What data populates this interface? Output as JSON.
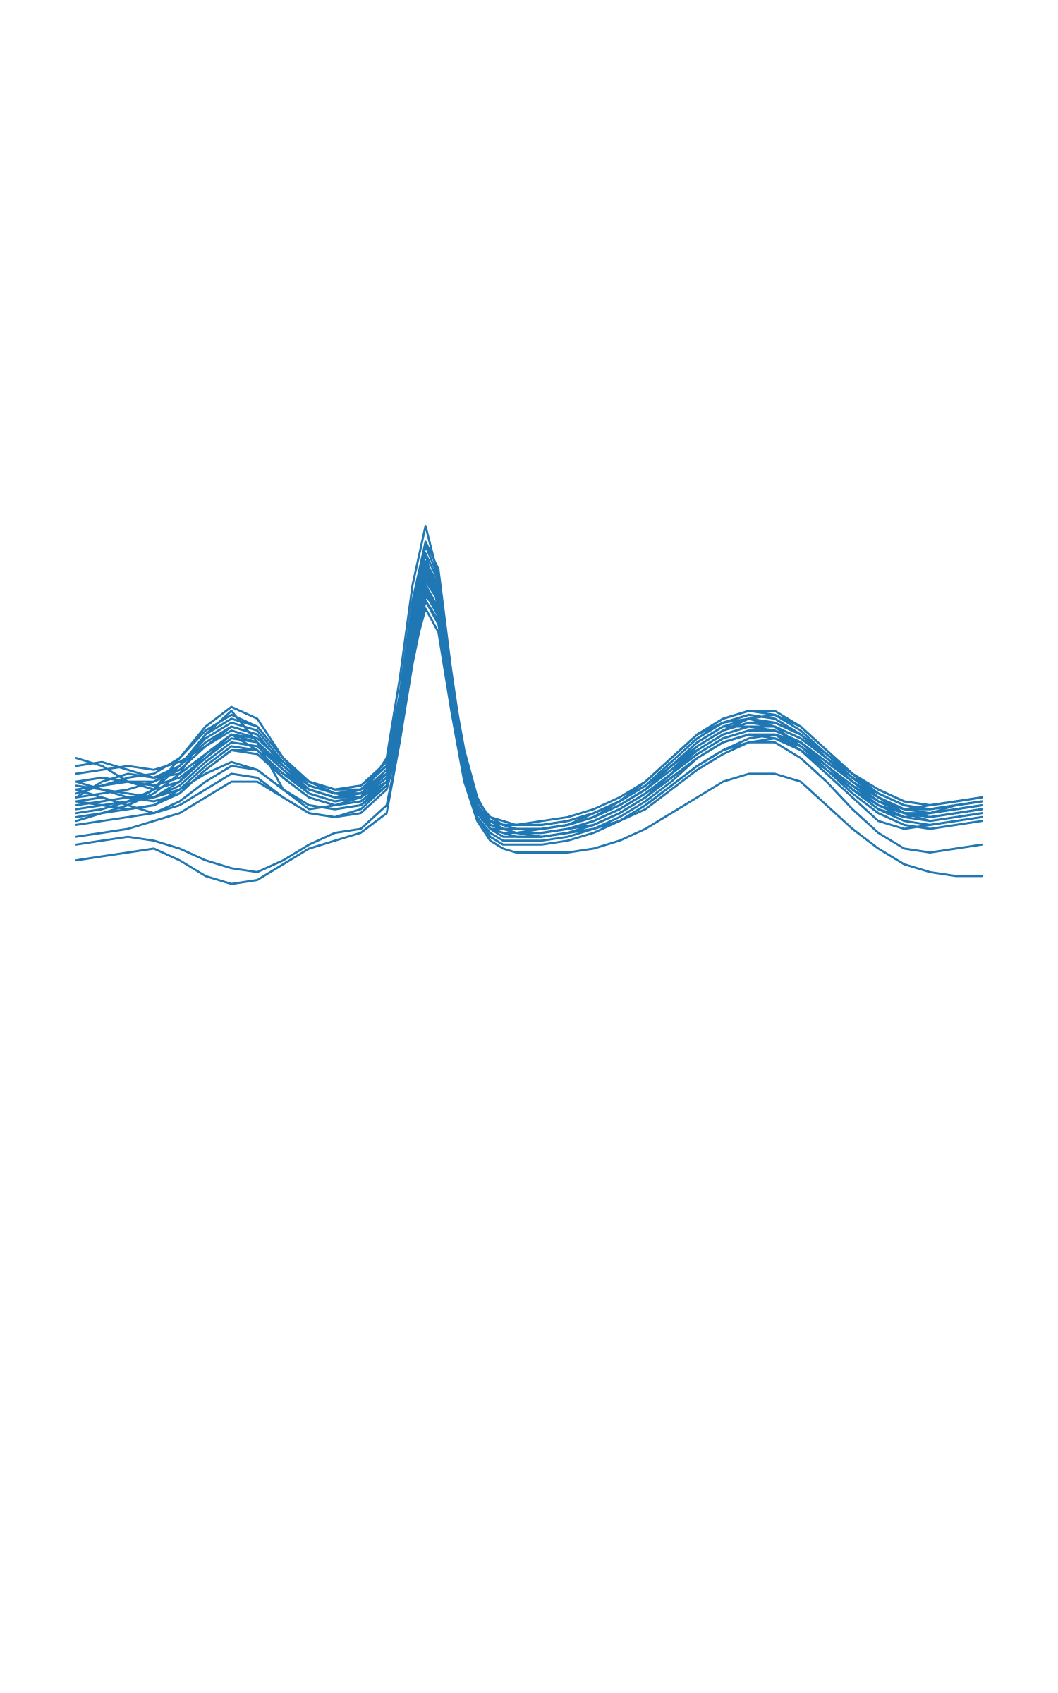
{
  "chart_data": {
    "type": "line",
    "title": "",
    "xlabel": "",
    "ylabel": "",
    "axes_visible": false,
    "grid": false,
    "legend": "none",
    "color": "#1f77b4",
    "x_range": [
      0,
      140
    ],
    "y_range": [
      -1.6,
      3.6
    ],
    "x_samples": [
      0,
      4,
      8,
      12,
      16,
      20,
      24,
      28,
      32,
      36,
      40,
      44,
      48,
      50,
      52,
      54,
      56,
      58,
      60,
      62,
      64,
      66,
      68,
      72,
      76,
      80,
      84,
      88,
      92,
      96,
      100,
      104,
      108,
      112,
      116,
      120,
      124,
      128,
      132,
      136,
      140
    ],
    "series": [
      {
        "values": [
          0.05,
          0.1,
          0.0,
          0.15,
          0.4,
          0.9,
          1.2,
          0.8,
          0.2,
          -0.05,
          0.0,
          0.1,
          0.6,
          1.6,
          2.8,
          3.55,
          2.9,
          1.6,
          0.5,
          -0.05,
          -0.2,
          -0.25,
          -0.25,
          -0.2,
          -0.15,
          -0.05,
          0.1,
          0.3,
          0.6,
          0.9,
          1.05,
          1.1,
          1.0,
          0.75,
          0.5,
          0.25,
          0.05,
          -0.05,
          0.0,
          0.05,
          0.1
        ]
      },
      {
        "values": [
          0.6,
          0.5,
          0.3,
          0.2,
          0.3,
          0.6,
          0.9,
          0.7,
          0.4,
          0.2,
          0.1,
          0.2,
          0.5,
          1.3,
          2.4,
          3.2,
          2.5,
          1.2,
          0.3,
          -0.1,
          -0.2,
          -0.3,
          -0.35,
          -0.35,
          -0.3,
          -0.25,
          -0.1,
          0.1,
          0.4,
          0.75,
          0.95,
          1.1,
          1.15,
          1.0,
          0.7,
          0.4,
          0.1,
          -0.1,
          -0.15,
          -0.1,
          -0.05
        ]
      },
      {
        "values": [
          -0.2,
          -0.1,
          0.0,
          0.2,
          0.5,
          0.8,
          1.0,
          0.9,
          0.5,
          0.2,
          0.1,
          0.2,
          0.4,
          1.0,
          2.0,
          2.9,
          2.6,
          1.5,
          0.6,
          0.0,
          -0.3,
          -0.35,
          -0.4,
          -0.4,
          -0.35,
          -0.3,
          -0.2,
          0.0,
          0.25,
          0.5,
          0.7,
          0.85,
          0.9,
          0.8,
          0.55,
          0.3,
          0.1,
          -0.1,
          -0.2,
          -0.15,
          -0.1
        ]
      },
      {
        "values": [
          0.1,
          0.3,
          0.4,
          0.35,
          0.5,
          0.9,
          1.1,
          1.0,
          0.6,
          0.3,
          0.15,
          0.1,
          0.3,
          1.1,
          2.2,
          3.0,
          2.7,
          1.4,
          0.4,
          -0.1,
          -0.3,
          -0.3,
          -0.3,
          -0.3,
          -0.25,
          -0.15,
          0.0,
          0.2,
          0.5,
          0.8,
          1.0,
          1.0,
          0.95,
          0.8,
          0.5,
          0.2,
          0.0,
          -0.15,
          -0.1,
          0.0,
          0.05
        ]
      },
      {
        "values": [
          0.3,
          0.2,
          0.15,
          0.1,
          0.2,
          0.4,
          0.55,
          0.45,
          0.2,
          0.0,
          -0.05,
          0.0,
          0.3,
          0.9,
          2.0,
          2.65,
          2.5,
          1.6,
          0.7,
          0.1,
          -0.2,
          -0.3,
          -0.35,
          -0.4,
          -0.35,
          -0.3,
          -0.2,
          -0.05,
          0.2,
          0.45,
          0.65,
          0.8,
          0.85,
          0.75,
          0.5,
          0.25,
          0.0,
          -0.1,
          -0.15,
          -0.1,
          -0.05
        ]
      },
      {
        "values": [
          -0.1,
          -0.05,
          0.05,
          0.2,
          0.6,
          1.0,
          1.25,
          1.1,
          0.6,
          0.25,
          0.15,
          0.2,
          0.5,
          1.2,
          2.3,
          3.1,
          2.8,
          1.5,
          0.5,
          0.0,
          -0.25,
          -0.3,
          -0.35,
          -0.3,
          -0.25,
          -0.1,
          0.05,
          0.25,
          0.55,
          0.85,
          1.05,
          1.15,
          1.1,
          0.9,
          0.6,
          0.35,
          0.1,
          -0.05,
          -0.1,
          -0.05,
          0.0
        ]
      },
      {
        "values": [
          0.2,
          0.1,
          0.0,
          -0.1,
          0.0,
          0.2,
          0.4,
          0.35,
          0.1,
          -0.1,
          -0.15,
          -0.1,
          0.2,
          0.8,
          1.8,
          2.6,
          2.3,
          1.3,
          0.4,
          -0.15,
          -0.35,
          -0.45,
          -0.45,
          -0.45,
          -0.4,
          -0.3,
          -0.15,
          0.05,
          0.3,
          0.6,
          0.8,
          0.9,
          0.9,
          0.7,
          0.4,
          0.1,
          -0.2,
          -0.3,
          -0.25,
          -0.2,
          -0.15
        ]
      },
      {
        "values": [
          0.4,
          0.45,
          0.5,
          0.45,
          0.55,
          0.75,
          0.95,
          0.85,
          0.55,
          0.3,
          0.2,
          0.25,
          0.5,
          1.3,
          2.5,
          3.3,
          2.9,
          1.7,
          0.6,
          0.05,
          -0.15,
          -0.2,
          -0.25,
          -0.25,
          -0.2,
          -0.1,
          0.05,
          0.25,
          0.5,
          0.75,
          0.95,
          1.05,
          1.05,
          0.9,
          0.65,
          0.4,
          0.2,
          0.05,
          0.0,
          0.05,
          0.1
        ]
      },
      {
        "values": [
          0.0,
          0.05,
          0.1,
          0.1,
          0.25,
          0.55,
          0.8,
          0.75,
          0.45,
          0.2,
          0.1,
          0.1,
          0.35,
          1.0,
          2.1,
          2.85,
          2.6,
          1.5,
          0.55,
          0.0,
          -0.2,
          -0.25,
          -0.3,
          -0.3,
          -0.25,
          -0.15,
          0.0,
          0.2,
          0.45,
          0.7,
          0.9,
          1.0,
          1.0,
          0.85,
          0.6,
          0.35,
          0.1,
          -0.05,
          -0.05,
          0.0,
          0.05
        ]
      },
      {
        "values": [
          -0.4,
          -0.35,
          -0.3,
          -0.2,
          -0.1,
          0.1,
          0.3,
          0.3,
          0.1,
          -0.1,
          -0.15,
          -0.05,
          0.25,
          0.9,
          1.9,
          2.7,
          2.4,
          1.35,
          0.45,
          -0.1,
          -0.3,
          -0.4,
          -0.4,
          -0.4,
          -0.35,
          -0.25,
          -0.1,
          0.1,
          0.35,
          0.6,
          0.8,
          0.9,
          0.9,
          0.75,
          0.45,
          0.15,
          -0.1,
          -0.25,
          -0.3,
          -0.25,
          -0.2
        ]
      },
      {
        "values": [
          0.15,
          0.25,
          0.35,
          0.4,
          0.6,
          0.95,
          1.15,
          1.0,
          0.6,
          0.3,
          0.2,
          0.25,
          0.55,
          1.4,
          2.6,
          3.35,
          3.0,
          1.7,
          0.55,
          0.0,
          -0.2,
          -0.25,
          -0.25,
          -0.25,
          -0.2,
          -0.1,
          0.05,
          0.3,
          0.6,
          0.9,
          1.1,
          1.2,
          1.15,
          0.95,
          0.65,
          0.35,
          0.15,
          0.0,
          -0.05,
          0.0,
          0.05
        ]
      },
      {
        "values": [
          0.25,
          0.2,
          0.1,
          0.05,
          0.15,
          0.45,
          0.7,
          0.65,
          0.35,
          0.1,
          0.0,
          0.05,
          0.3,
          0.95,
          2.0,
          2.75,
          2.45,
          1.4,
          0.5,
          -0.05,
          -0.25,
          -0.3,
          -0.35,
          -0.35,
          -0.3,
          -0.2,
          -0.05,
          0.15,
          0.4,
          0.65,
          0.85,
          0.95,
          0.95,
          0.8,
          0.55,
          0.3,
          0.05,
          -0.1,
          -0.15,
          -0.1,
          -0.05
        ]
      },
      {
        "values": [
          -0.05,
          0.0,
          0.05,
          0.1,
          0.3,
          0.65,
          0.9,
          0.8,
          0.45,
          0.15,
          0.05,
          0.1,
          0.35,
          1.05,
          2.15,
          2.95,
          2.65,
          1.55,
          0.55,
          0.0,
          -0.2,
          -0.3,
          -0.3,
          -0.3,
          -0.25,
          -0.15,
          0.0,
          0.2,
          0.45,
          0.75,
          0.95,
          1.05,
          1.0,
          0.85,
          0.6,
          0.3,
          0.05,
          -0.1,
          -0.1,
          -0.05,
          0.0
        ]
      },
      {
        "values": [
          0.3,
          0.35,
          0.3,
          0.25,
          0.35,
          0.6,
          0.85,
          0.8,
          0.5,
          0.25,
          0.15,
          0.15,
          0.4,
          1.1,
          2.2,
          3.0,
          2.7,
          1.6,
          0.6,
          0.05,
          -0.15,
          -0.25,
          -0.3,
          -0.3,
          -0.25,
          -0.15,
          0.0,
          0.2,
          0.5,
          0.8,
          1.0,
          1.1,
          1.05,
          0.9,
          0.65,
          0.4,
          0.15,
          0.0,
          -0.05,
          0.0,
          0.05
        ]
      },
      {
        "values": [
          -0.25,
          -0.2,
          -0.15,
          -0.1,
          0.05,
          0.3,
          0.5,
          0.45,
          0.2,
          0.0,
          -0.05,
          0.0,
          0.25,
          0.85,
          1.85,
          2.6,
          2.35,
          1.35,
          0.45,
          -0.05,
          -0.3,
          -0.35,
          -0.4,
          -0.4,
          -0.35,
          -0.25,
          -0.1,
          0.1,
          0.35,
          0.6,
          0.8,
          0.9,
          0.85,
          0.7,
          0.45,
          0.2,
          -0.05,
          -0.2,
          -0.25,
          -0.2,
          -0.15
        ]
      },
      {
        "values": [
          0.1,
          0.15,
          0.2,
          0.3,
          0.5,
          0.85,
          1.05,
          0.95,
          0.55,
          0.25,
          0.15,
          0.15,
          0.45,
          1.2,
          2.35,
          3.1,
          2.75,
          1.6,
          0.55,
          0.0,
          -0.2,
          -0.3,
          -0.3,
          -0.3,
          -0.25,
          -0.15,
          0.05,
          0.25,
          0.55,
          0.85,
          1.05,
          1.15,
          1.1,
          0.9,
          0.6,
          0.35,
          0.1,
          -0.05,
          -0.05,
          0.0,
          0.05
        ]
      },
      {
        "values": [
          -0.7,
          -0.65,
          -0.6,
          -0.55,
          -0.7,
          -0.9,
          -1.0,
          -0.95,
          -0.75,
          -0.55,
          -0.45,
          -0.35,
          -0.1,
          0.8,
          1.9,
          2.5,
          2.2,
          1.2,
          0.3,
          -0.2,
          -0.45,
          -0.55,
          -0.6,
          -0.6,
          -0.6,
          -0.55,
          -0.45,
          -0.3,
          -0.1,
          0.1,
          0.3,
          0.4,
          0.4,
          0.3,
          0.0,
          -0.3,
          -0.55,
          -0.75,
          -0.85,
          -0.9,
          -0.9
        ]
      },
      {
        "values": [
          -0.5,
          -0.45,
          -0.4,
          -0.45,
          -0.55,
          -0.7,
          -0.8,
          -0.85,
          -0.7,
          -0.5,
          -0.35,
          -0.3,
          0.0,
          0.8,
          1.9,
          2.7,
          2.4,
          1.3,
          0.35,
          -0.15,
          -0.4,
          -0.5,
          -0.5,
          -0.5,
          -0.45,
          -0.35,
          -0.2,
          0.0,
          0.25,
          0.5,
          0.7,
          0.8,
          0.8,
          0.6,
          0.3,
          -0.05,
          -0.35,
          -0.55,
          -0.6,
          -0.55,
          -0.5
        ]
      },
      {
        "values": [
          0.05,
          0.0,
          -0.05,
          0.0,
          0.15,
          0.45,
          0.7,
          0.7,
          0.4,
          0.15,
          0.05,
          0.1,
          0.4,
          1.1,
          2.2,
          3.0,
          2.6,
          1.5,
          0.5,
          0.0,
          -0.25,
          -0.3,
          -0.35,
          -0.35,
          -0.3,
          -0.2,
          -0.05,
          0.15,
          0.4,
          0.7,
          0.9,
          1.0,
          0.95,
          0.8,
          0.5,
          0.25,
          0.0,
          -0.1,
          -0.15,
          -0.1,
          -0.05
        ]
      },
      {
        "values": [
          0.2,
          0.25,
          0.3,
          0.3,
          0.45,
          0.75,
          1.0,
          0.9,
          0.5,
          0.2,
          0.1,
          0.15,
          0.45,
          1.15,
          2.25,
          3.05,
          2.7,
          1.55,
          0.5,
          -0.05,
          -0.25,
          -0.3,
          -0.3,
          -0.3,
          -0.25,
          -0.15,
          0.0,
          0.2,
          0.5,
          0.8,
          1.0,
          1.1,
          1.05,
          0.9,
          0.6,
          0.3,
          0.05,
          -0.1,
          -0.1,
          -0.05,
          0.0
        ]
      },
      {
        "values": [
          -0.15,
          -0.1,
          -0.05,
          0.0,
          0.2,
          0.5,
          0.75,
          0.7,
          0.35,
          0.1,
          0.0,
          0.05,
          0.3,
          1.0,
          2.05,
          2.8,
          2.5,
          1.45,
          0.5,
          -0.05,
          -0.3,
          -0.35,
          -0.35,
          -0.35,
          -0.3,
          -0.2,
          -0.05,
          0.15,
          0.4,
          0.65,
          0.85,
          0.95,
          0.95,
          0.8,
          0.5,
          0.2,
          -0.05,
          -0.15,
          -0.2,
          -0.15,
          -0.1
        ]
      },
      {
        "values": [
          0.5,
          0.55,
          0.45,
          0.35,
          0.4,
          0.65,
          0.9,
          0.85,
          0.55,
          0.3,
          0.2,
          0.2,
          0.5,
          1.25,
          2.4,
          3.2,
          2.85,
          1.65,
          0.55,
          0.0,
          -0.2,
          -0.25,
          -0.25,
          -0.25,
          -0.2,
          -0.1,
          0.05,
          0.3,
          0.6,
          0.9,
          1.1,
          1.2,
          1.2,
          1.0,
          0.7,
          0.4,
          0.2,
          0.05,
          0.0,
          0.05,
          0.1
        ]
      }
    ]
  }
}
